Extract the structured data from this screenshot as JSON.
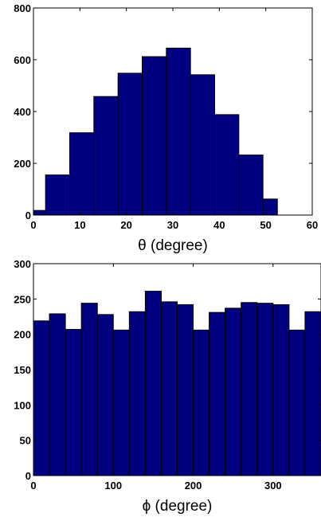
{
  "chart_data": [
    {
      "type": "bar",
      "histogram": true,
      "xlabel": "θ (degree)",
      "ylabel": "",
      "xlim": [
        0,
        60
      ],
      "ylim": [
        0,
        800
      ],
      "xticks": [
        0,
        10,
        20,
        30,
        40,
        50,
        60
      ],
      "yticks": [
        0,
        200,
        400,
        600,
        800
      ],
      "bin_edges": [
        0,
        2.6,
        7.8,
        13.0,
        18.2,
        23.4,
        28.6,
        33.8,
        39.0,
        44.2,
        49.4,
        52.5
      ],
      "values": [
        18,
        155,
        318,
        458,
        548,
        612,
        645,
        542,
        388,
        232,
        62
      ],
      "bar_color": "#000080",
      "grid": false
    },
    {
      "type": "bar",
      "histogram": true,
      "xlabel": "ϕ (degree)",
      "ylabel": "",
      "xlim": [
        0,
        360
      ],
      "ylim": [
        0,
        300
      ],
      "xticks": [
        0,
        100,
        200,
        300
      ],
      "yticks": [
        0,
        50,
        100,
        150,
        200,
        250,
        300
      ],
      "bin_edges": [
        0,
        20,
        40,
        60,
        80,
        100,
        120,
        140,
        160,
        180,
        200,
        220,
        240,
        260,
        280,
        300,
        320,
        340,
        360
      ],
      "values": [
        219,
        229,
        207,
        244,
        228,
        206,
        232,
        261,
        246,
        242,
        206,
        231,
        237,
        245,
        244,
        242,
        206,
        232
      ],
      "bar_color": "#000080",
      "grid": false
    }
  ]
}
